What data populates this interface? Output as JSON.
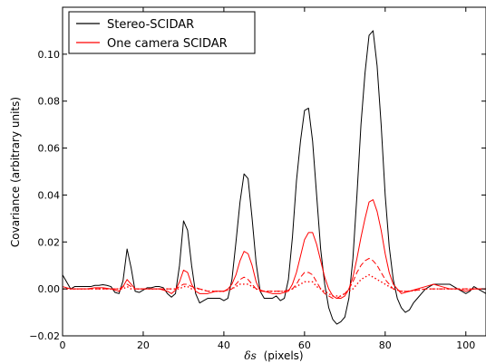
{
  "chart_data": {
    "type": "line",
    "xlabel_symbol": "δs",
    "xlabel_unit": "(pixels)",
    "ylabel": "Covariance (arbitrary units)",
    "xlim": [
      0,
      105
    ],
    "ylim": [
      -0.02,
      0.12
    ],
    "xticks": [
      0,
      20,
      40,
      60,
      80,
      100
    ],
    "yticks": [
      -0.02,
      0.0,
      0.02,
      0.04,
      0.06,
      0.08,
      0.1
    ],
    "ytick_labels": [
      "−0.02",
      "0.00",
      "0.02",
      "0.04",
      "0.06",
      "0.08",
      "0.10"
    ],
    "grid": false,
    "legend_position": "top-left",
    "series": [
      {
        "name": "Stereo-SCIDAR",
        "color": "#000000",
        "dash": "solid",
        "legend": true,
        "x": [
          0,
          1,
          2,
          3,
          4,
          5,
          6,
          7,
          8,
          9,
          10,
          11,
          12,
          13,
          14,
          15,
          16,
          17,
          18,
          19,
          20,
          21,
          22,
          23,
          24,
          25,
          26,
          27,
          28,
          29,
          30,
          31,
          32,
          33,
          34,
          35,
          36,
          37,
          38,
          39,
          40,
          41,
          42,
          43,
          44,
          45,
          46,
          47,
          48,
          49,
          50,
          51,
          52,
          53,
          54,
          55,
          56,
          57,
          58,
          59,
          60,
          61,
          62,
          63,
          64,
          65,
          66,
          67,
          68,
          69,
          70,
          71,
          72,
          73,
          74,
          75,
          76,
          77,
          78,
          79,
          80,
          81,
          82,
          83,
          84,
          85,
          86,
          87,
          88,
          89,
          90,
          91,
          92,
          93,
          94,
          95,
          96,
          97,
          98,
          99,
          100,
          101,
          102,
          103,
          104,
          105
        ],
        "y": [
          0.006,
          0.003,
          0.0,
          0.001,
          0.001,
          0.001,
          0.001,
          0.001,
          0.0015,
          0.0015,
          0.0018,
          0.0015,
          0.001,
          -0.0015,
          -0.002,
          0.0035,
          0.017,
          0.009,
          -0.001,
          -0.0015,
          -0.0005,
          0.0005,
          0.0005,
          0.001,
          0.001,
          0.0005,
          -0.002,
          -0.0035,
          -0.002,
          0.01,
          0.029,
          0.025,
          0.01,
          -0.002,
          -0.006,
          -0.005,
          -0.004,
          -0.004,
          -0.004,
          -0.004,
          -0.005,
          -0.004,
          0.004,
          0.02,
          0.037,
          0.049,
          0.047,
          0.03,
          0.011,
          -0.001,
          -0.004,
          -0.004,
          -0.004,
          -0.003,
          -0.005,
          -0.004,
          0.004,
          0.022,
          0.046,
          0.063,
          0.076,
          0.077,
          0.063,
          0.04,
          0.017,
          0.002,
          -0.008,
          -0.013,
          -0.015,
          -0.014,
          -0.012,
          -0.004,
          0.013,
          0.04,
          0.07,
          0.092,
          0.108,
          0.11,
          0.095,
          0.07,
          0.04,
          0.018,
          0.004,
          -0.004,
          -0.008,
          -0.01,
          -0.009,
          -0.006,
          -0.004,
          -0.002,
          0.0,
          0.001,
          0.002,
          0.002,
          0.002,
          0.002,
          0.002,
          0.001,
          0.0,
          -0.001,
          -0.002,
          -0.001,
          0.001,
          0.0,
          -0.001,
          -0.002
        ]
      },
      {
        "name": "One camera SCIDAR",
        "color": "#ff0000",
        "dash": "solid",
        "legend": true,
        "x": [
          0,
          2,
          4,
          6,
          8,
          10,
          12,
          13,
          14,
          15,
          16,
          17,
          18,
          20,
          22,
          24,
          26,
          27,
          28,
          29,
          30,
          31,
          32,
          33,
          34,
          36,
          38,
          40,
          41,
          42,
          43,
          44,
          45,
          46,
          47,
          48,
          49,
          50,
          52,
          54,
          56,
          57,
          58,
          59,
          60,
          61,
          62,
          63,
          64,
          65,
          66,
          67,
          68,
          69,
          70,
          71,
          72,
          73,
          74,
          75,
          76,
          77,
          78,
          79,
          80,
          81,
          82,
          84,
          86,
          88,
          90,
          92,
          94,
          96,
          98,
          100,
          102,
          105
        ],
        "y": [
          0.001,
          0.0,
          0.0,
          0.0,
          0.0005,
          0.0005,
          0.0,
          -0.0005,
          -0.001,
          0.001,
          0.004,
          0.002,
          0.0,
          0.0,
          0.0,
          0.0,
          -0.001,
          -0.002,
          -0.0005,
          0.003,
          0.008,
          0.007,
          0.002,
          -0.001,
          -0.002,
          -0.002,
          -0.001,
          -0.001,
          0.0,
          0.002,
          0.006,
          0.012,
          0.016,
          0.015,
          0.01,
          0.003,
          -0.001,
          -0.001,
          -0.002,
          -0.002,
          -0.001,
          0.002,
          0.007,
          0.014,
          0.021,
          0.024,
          0.024,
          0.019,
          0.012,
          0.005,
          0.0,
          -0.003,
          -0.004,
          -0.004,
          -0.003,
          0.0,
          0.005,
          0.013,
          0.022,
          0.03,
          0.037,
          0.038,
          0.033,
          0.025,
          0.015,
          0.007,
          0.002,
          -0.002,
          -0.001,
          0.0,
          0.001,
          0.002,
          0.001,
          0.0,
          0.0,
          -0.001,
          0.0,
          0.0
        ]
      },
      {
        "name": "",
        "color": "#ff0000",
        "dash": "dashed",
        "legend": false,
        "x": [
          0,
          5,
          10,
          14,
          15,
          16,
          17,
          18,
          20,
          25,
          28,
          29,
          30,
          31,
          32,
          34,
          36,
          40,
          42,
          43,
          44,
          45,
          46,
          47,
          48,
          50,
          55,
          57,
          58,
          59,
          60,
          61,
          62,
          63,
          64,
          65,
          66,
          67,
          68,
          69,
          70,
          71,
          72,
          73,
          74,
          75,
          76,
          77,
          78,
          79,
          80,
          81,
          82,
          84,
          86,
          90,
          95,
          100,
          105
        ],
        "y": [
          0.0,
          0.0,
          0.0,
          0.0,
          0.001,
          0.002,
          0.001,
          0.0,
          0.0,
          0.0,
          0.0,
          0.001,
          0.002,
          0.002,
          0.001,
          0.0,
          -0.001,
          -0.001,
          0.0,
          0.002,
          0.004,
          0.005,
          0.004,
          0.002,
          0.0,
          -0.001,
          -0.001,
          0.0,
          0.002,
          0.005,
          0.007,
          0.007,
          0.006,
          0.003,
          0.0,
          -0.002,
          -0.003,
          -0.004,
          -0.004,
          -0.003,
          -0.002,
          0.0,
          0.003,
          0.007,
          0.01,
          0.012,
          0.013,
          0.012,
          0.01,
          0.007,
          0.004,
          0.002,
          0.0,
          -0.001,
          -0.001,
          0.0,
          0.0,
          0.0,
          0.0
        ]
      },
      {
        "name": "",
        "color": "#ff0000",
        "dash": "dotted",
        "legend": false,
        "x": [
          0,
          5,
          10,
          14,
          15,
          16,
          17,
          18,
          20,
          25,
          28,
          29,
          30,
          31,
          32,
          34,
          36,
          40,
          42,
          43,
          44,
          45,
          46,
          47,
          48,
          50,
          55,
          57,
          58,
          59,
          60,
          61,
          62,
          63,
          64,
          65,
          66,
          67,
          68,
          69,
          70,
          71,
          72,
          73,
          74,
          75,
          76,
          77,
          78,
          79,
          80,
          81,
          82,
          84,
          86,
          90,
          95,
          100,
          105
        ],
        "y": [
          0.0,
          0.0,
          0.0,
          0.0,
          0.0,
          0.001,
          0.0,
          0.0,
          0.0,
          0.0,
          0.0,
          0.0,
          0.001,
          0.001,
          0.0,
          0.0,
          -0.001,
          -0.001,
          0.0,
          0.001,
          0.002,
          0.002,
          0.002,
          0.001,
          0.0,
          -0.001,
          -0.001,
          0.0,
          0.001,
          0.002,
          0.003,
          0.003,
          0.003,
          0.001,
          0.0,
          -0.001,
          -0.002,
          -0.003,
          -0.003,
          -0.003,
          -0.002,
          -0.001,
          0.0,
          0.002,
          0.004,
          0.005,
          0.006,
          0.005,
          0.004,
          0.003,
          0.002,
          0.001,
          0.0,
          -0.001,
          -0.001,
          0.0,
          0.0,
          0.0,
          0.0
        ]
      }
    ]
  }
}
